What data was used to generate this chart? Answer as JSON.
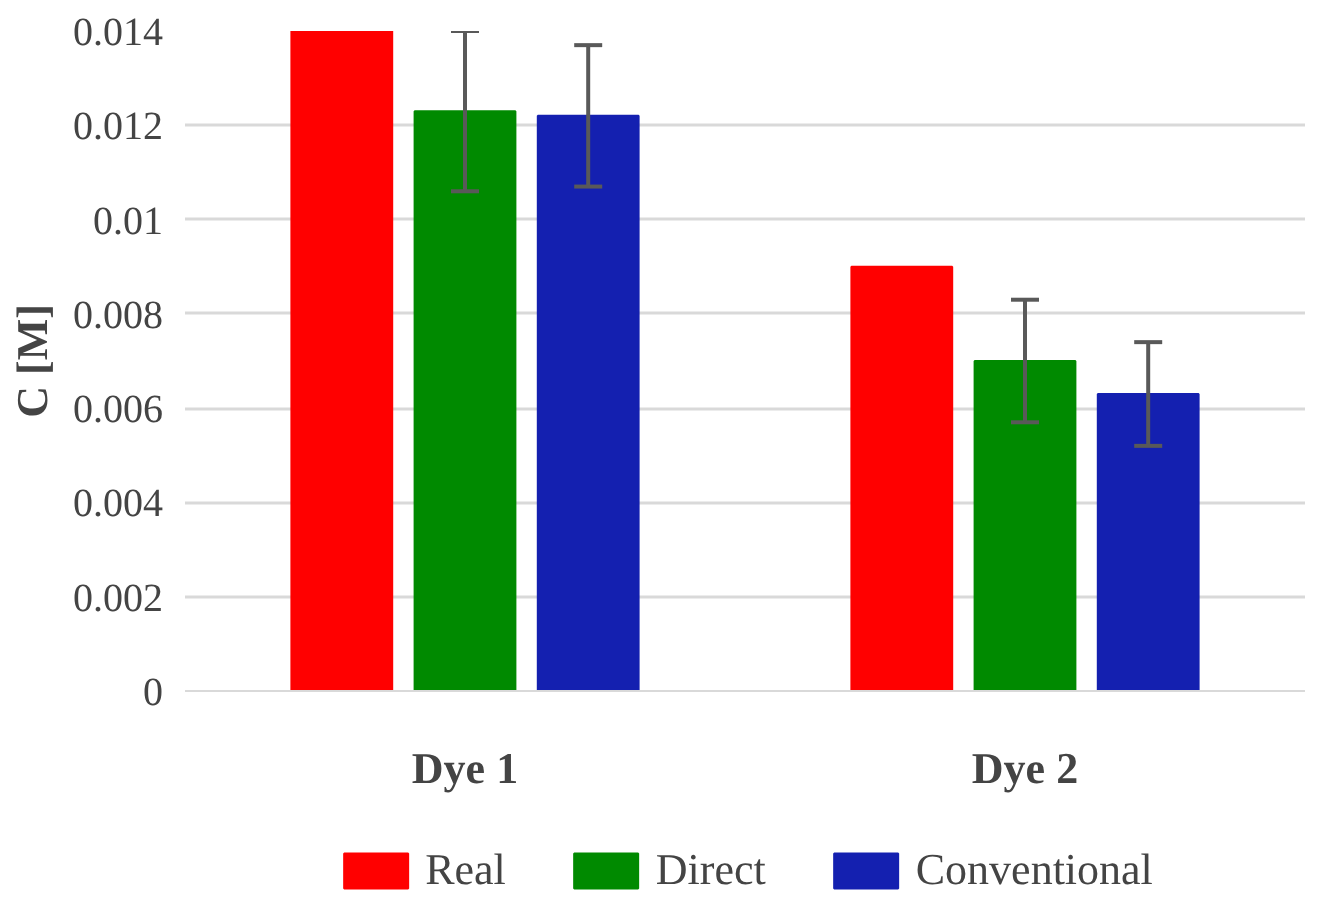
{
  "chart_data": {
    "type": "bar",
    "ylabel": "C [M]",
    "categories": [
      "Dye 1",
      "Dye 2"
    ],
    "series": [
      {
        "name": "Real",
        "color": "#ff0000",
        "values": [
          0.014,
          0.009
        ]
      },
      {
        "name": "Direct",
        "color": "#008a00",
        "values": [
          0.0123,
          0.007
        ],
        "errors": [
          0.0017,
          0.0013
        ]
      },
      {
        "name": "Conventional",
        "color": "#1420b0",
        "values": [
          0.0122,
          0.0063
        ],
        "errors": [
          0.0015,
          0.0011
        ]
      }
    ],
    "ylim": [
      0,
      0.014
    ],
    "yticks": [
      0,
      0.002,
      0.004,
      0.006,
      0.008,
      0.01,
      0.012,
      0.014
    ],
    "grid": "y",
    "legend": "bottom"
  }
}
